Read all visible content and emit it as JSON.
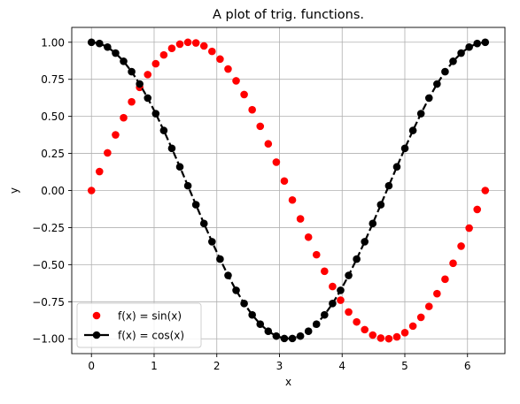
{
  "chart_data": {
    "type": "line",
    "title": "A plot of trig. functions.",
    "xlabel": "x",
    "ylabel": "y",
    "xlim": [
      -0.3142,
      6.5973
    ],
    "ylim": [
      -1.1,
      1.1
    ],
    "xticks": [
      0,
      1,
      2,
      3,
      4,
      5,
      6
    ],
    "xtick_labels": [
      "0",
      "1",
      "2",
      "3",
      "4",
      "5",
      "6"
    ],
    "yticks": [
      -1.0,
      -0.75,
      -0.5,
      -0.25,
      0.0,
      0.25,
      0.5,
      0.75,
      1.0
    ],
    "ytick_labels": [
      "−1.00",
      "−0.75",
      "−0.50",
      "−0.25",
      "0.00",
      "0.25",
      "0.50",
      "0.75",
      "1.00"
    ],
    "grid": true,
    "legend_position": "lower-left",
    "x": [
      0.0,
      0.1282,
      0.2565,
      0.3847,
      0.5129,
      0.6411,
      0.7694,
      0.8976,
      1.0258,
      1.1541,
      1.2823,
      1.4105,
      1.5387,
      1.667,
      1.7952,
      1.9234,
      2.0517,
      2.1799,
      2.3081,
      2.4363,
      2.5646,
      2.6928,
      2.821,
      2.9493,
      3.0775,
      3.2057,
      3.3339,
      3.4622,
      3.5904,
      3.7186,
      3.8468,
      3.9751,
      4.1033,
      4.2315,
      4.3598,
      4.488,
      4.6162,
      4.7444,
      4.8727,
      5.0009,
      5.1291,
      5.2574,
      5.3856,
      5.5138,
      5.642,
      5.7703,
      5.8985,
      6.0267,
      6.155,
      6.2832
    ],
    "series": [
      {
        "name": "f(x) = sin(x)",
        "color": "#ff0000",
        "marker": "circle",
        "line": "none",
        "values": [
          0.0,
          0.1279,
          0.2537,
          0.3753,
          0.4907,
          0.5981,
          0.6956,
          0.7818,
          0.8551,
          0.9144,
          0.9587,
          0.9872,
          0.9995,
          0.9954,
          0.9749,
          0.9383,
          0.8862,
          0.8196,
          0.7395,
          0.6473,
          0.5446,
          0.433,
          0.3146,
          0.1912,
          0.0641,
          -0.0641,
          -0.1912,
          -0.3146,
          -0.433,
          -0.5446,
          -0.6473,
          -0.7395,
          -0.8196,
          -0.8862,
          -0.9383,
          -0.9749,
          -0.9954,
          -0.9995,
          -0.9872,
          -0.9587,
          -0.9144,
          -0.8551,
          -0.7818,
          -0.6956,
          -0.5981,
          -0.4907,
          -0.3753,
          -0.2537,
          -0.1279,
          0.0
        ]
      },
      {
        "name": "f(x) = cos(x)",
        "color": "#000000",
        "marker": "circle",
        "line": "dashed",
        "values": [
          1.0,
          0.9918,
          0.9673,
          0.9269,
          0.8713,
          0.8014,
          0.7183,
          0.6235,
          0.5184,
          0.4048,
          0.2845,
          0.1596,
          0.0321,
          -0.096,
          -0.2225,
          -0.3453,
          -0.4625,
          -0.5727,
          -0.6731,
          -0.7621,
          -0.8387,
          -0.9014,
          -0.9492,
          -0.9816,
          -0.9979,
          -0.9979,
          -0.9816,
          -0.9492,
          -0.9014,
          -0.8387,
          -0.7621,
          -0.6731,
          -0.5727,
          -0.4625,
          -0.3453,
          -0.2225,
          -0.096,
          0.0321,
          0.1596,
          0.2845,
          0.4048,
          0.5184,
          0.6235,
          0.7183,
          0.8014,
          0.8713,
          0.9269,
          0.9673,
          0.9918,
          1.0
        ]
      }
    ]
  }
}
